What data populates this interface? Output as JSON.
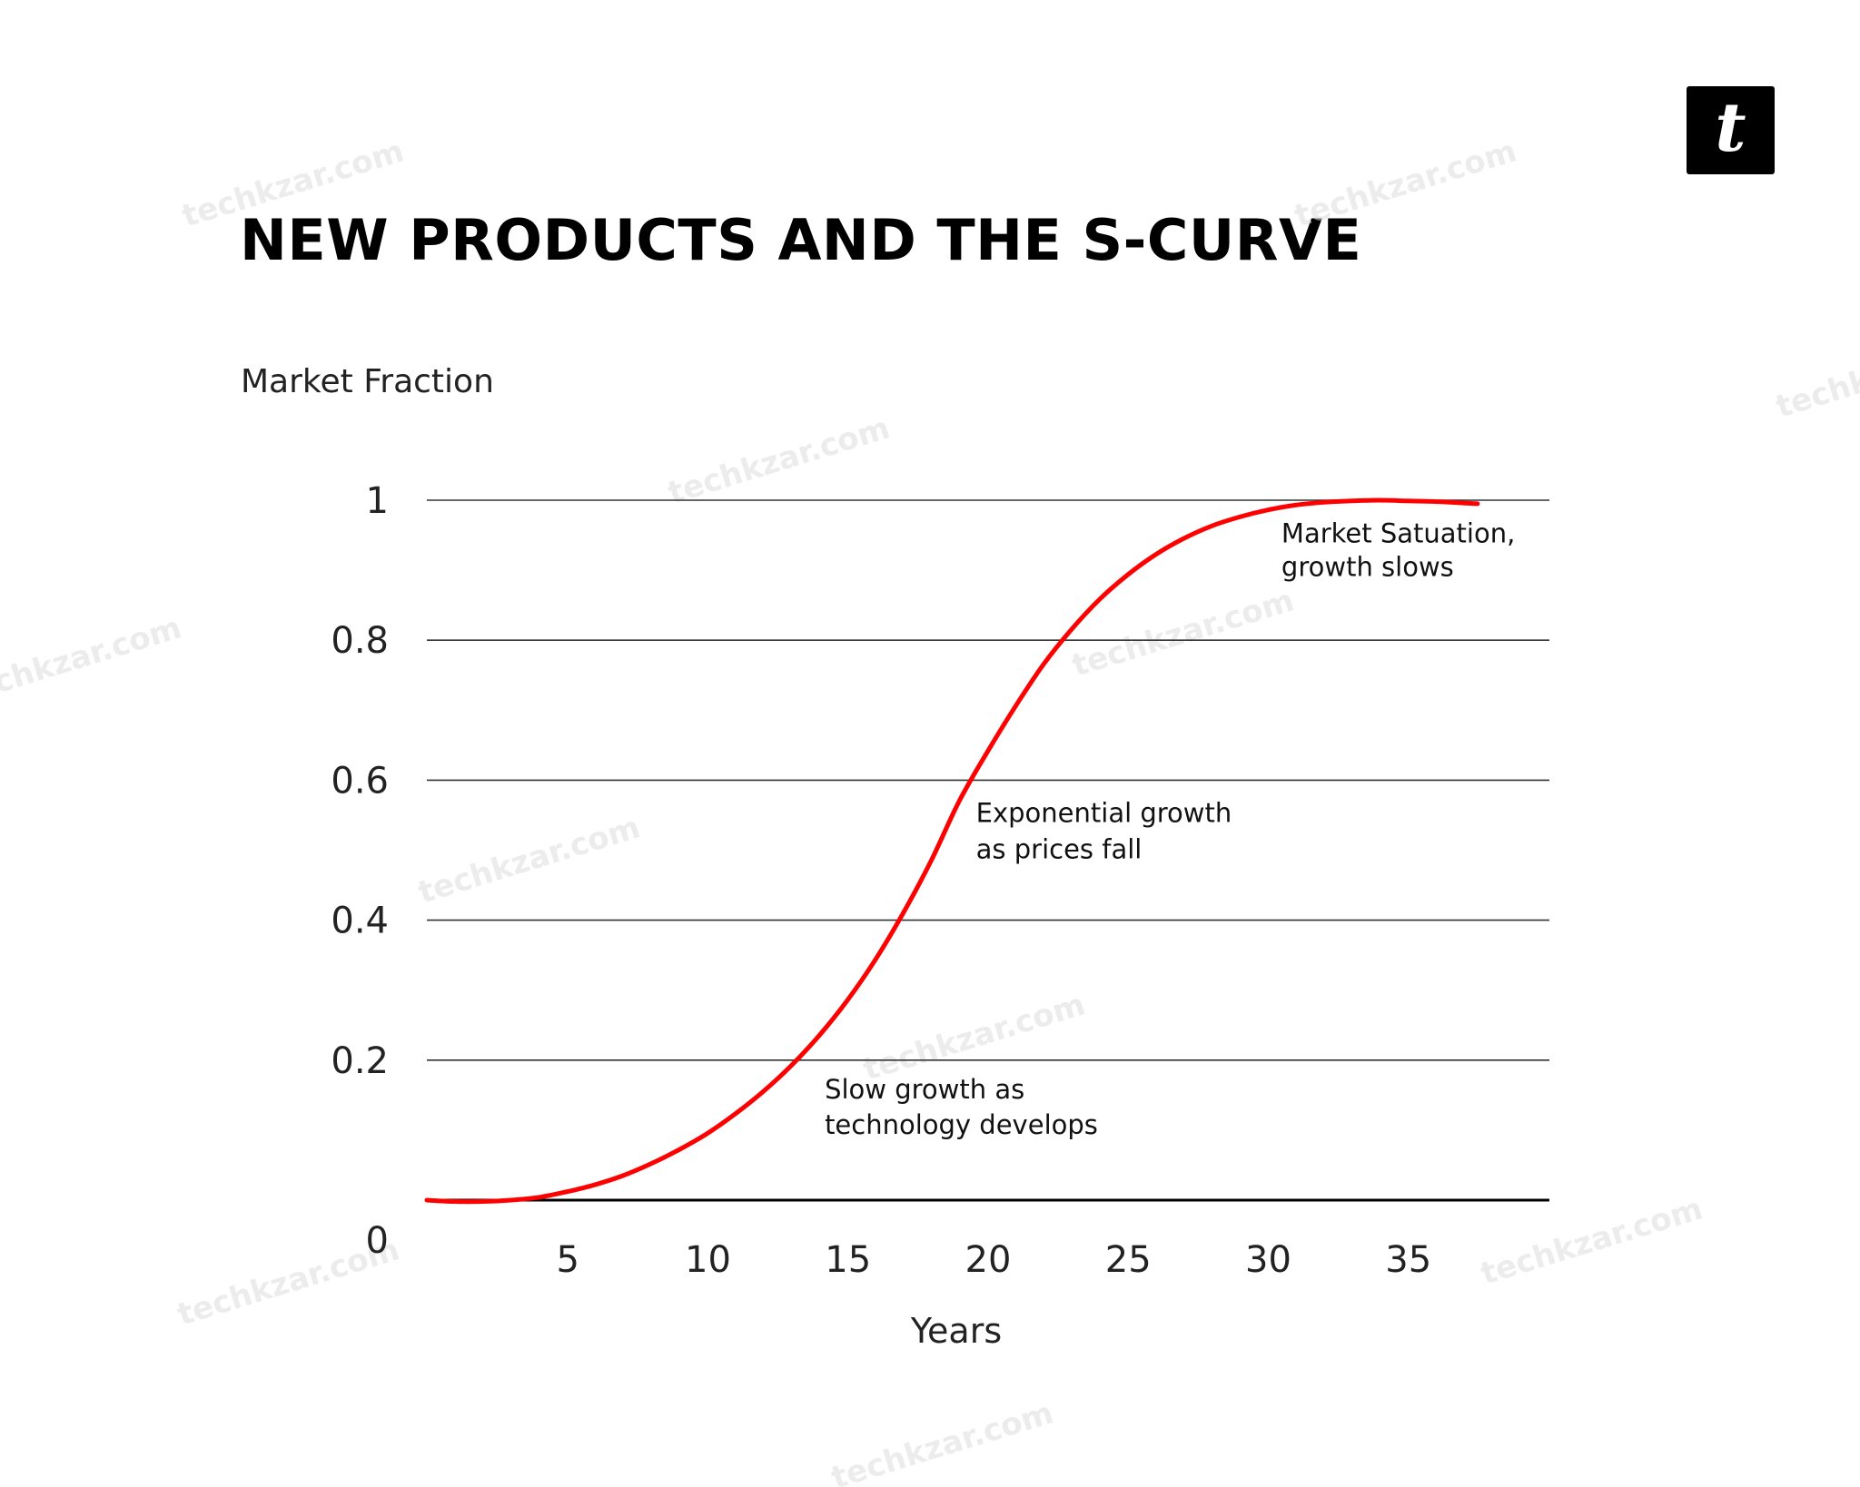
{
  "page": {
    "title": "NEW PRODUCTS AND THE S-CURVE",
    "logo_letter": "t",
    "watermark": "techkzar.com"
  },
  "chart_data": {
    "type": "line",
    "title": "NEW PRODUCTS AND THE S-CURVE",
    "xlabel": "Years",
    "ylabel": "Market Fraction",
    "xlim": [
      0,
      40
    ],
    "ylim": [
      0,
      1
    ],
    "x_ticks": [
      5,
      10,
      15,
      20,
      25,
      30,
      35
    ],
    "y_ticks": [
      {
        "value": 0,
        "label": "0"
      },
      {
        "value": 0.2,
        "label": "0.2"
      },
      {
        "value": 0.4,
        "label": "0.4"
      },
      {
        "value": 0.6,
        "label": "0.6"
      },
      {
        "value": 0.8,
        "label": "0.8"
      },
      {
        "value": 1,
        "label": "1"
      }
    ],
    "grid": true,
    "series": [
      {
        "color": "#ff0000",
        "x": [
          0,
          1,
          2,
          3,
          4,
          5,
          6,
          7,
          8,
          9,
          10,
          11,
          12,
          13,
          14,
          15,
          16,
          17,
          18,
          19,
          20,
          21,
          22,
          23,
          24,
          25,
          26,
          27,
          28,
          29,
          30,
          31,
          32,
          33,
          34,
          35,
          36,
          37,
          37.5
        ],
        "y": [
          0.0,
          -0.002,
          -0.002,
          0.0,
          0.004,
          0.012,
          0.022,
          0.035,
          0.052,
          0.072,
          0.095,
          0.123,
          0.155,
          0.192,
          0.235,
          0.285,
          0.343,
          0.41,
          0.485,
          0.57,
          0.64,
          0.705,
          0.765,
          0.815,
          0.858,
          0.893,
          0.922,
          0.945,
          0.963,
          0.976,
          0.986,
          0.993,
          0.997,
          0.999,
          1.0,
          0.999,
          0.998,
          0.996,
          0.995
        ]
      }
    ],
    "annotations": [
      {
        "lines": [
          "Market Satuation,",
          "growth slows"
        ],
        "x": 30.5,
        "y": 0.94
      },
      {
        "lines": [
          "Exponential growth",
          "as prices fall"
        ],
        "x": 19.6,
        "y": 0.54
      },
      {
        "lines": [
          "Slow growth as",
          "technology develops"
        ],
        "x": 14.2,
        "y": 0.145
      }
    ]
  }
}
